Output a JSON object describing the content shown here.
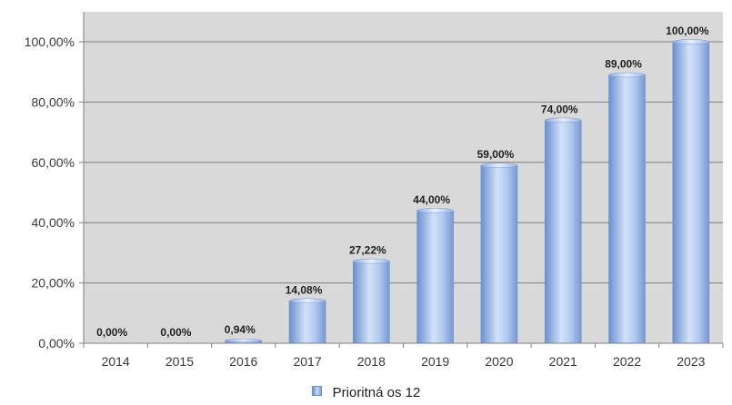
{
  "chart_data": {
    "type": "bar",
    "categories": [
      "2014",
      "2015",
      "2016",
      "2017",
      "2018",
      "2019",
      "2020",
      "2021",
      "2022",
      "2023"
    ],
    "series": [
      {
        "name": "Prioritná os 12",
        "values": [
          0.0,
          0.0,
          0.94,
          14.08,
          27.22,
          44.0,
          59.0,
          74.0,
          89.0,
          100.0
        ],
        "labels": [
          "0,00%",
          "0,00%",
          "0,94%",
          "14,08%",
          "27,22%",
          "44,00%",
          "59,00%",
          "74,00%",
          "89,00%",
          "100,00%"
        ]
      }
    ],
    "y_ticks": [
      0,
      20,
      40,
      60,
      80,
      100
    ],
    "y_tick_labels": [
      "0,00%",
      "20,00%",
      "40,00%",
      "60,00%",
      "80,00%",
      "100,00%"
    ],
    "ylim": [
      0,
      100
    ],
    "grid": true,
    "legend_position": "bottom-center",
    "colors": {
      "plot_background": "#d9d9d9",
      "bar_dark": "#6f95d2",
      "bar_light": "#cfe0f8",
      "gridline": "#7f7f7f"
    }
  }
}
